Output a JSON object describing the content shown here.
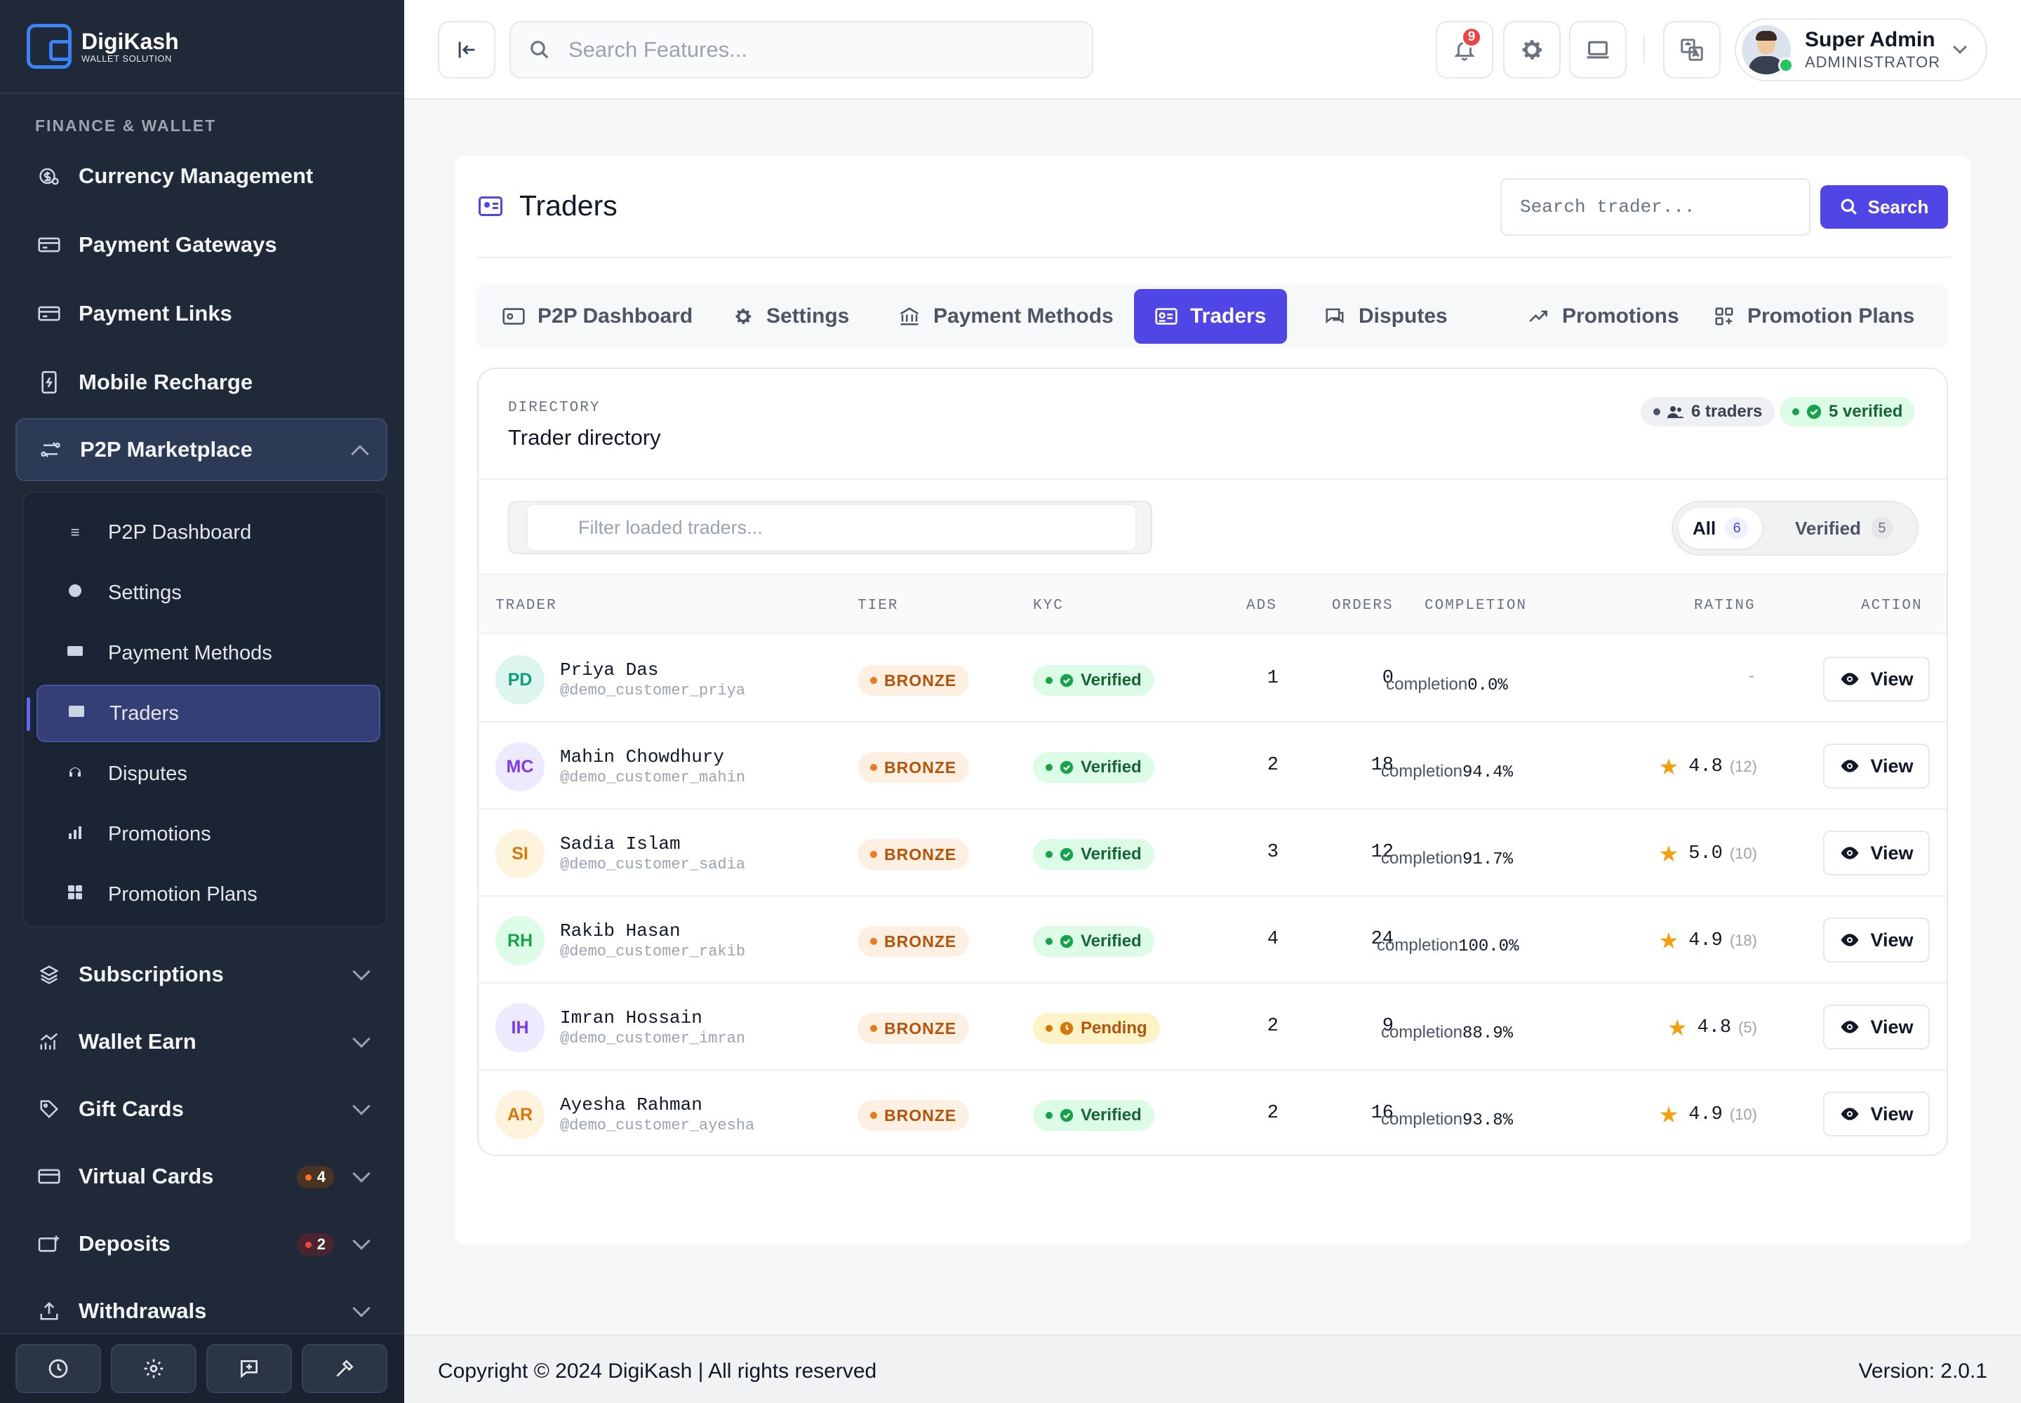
{
  "brand": {
    "name": "DigiKash",
    "tagline": "WALLET SOLUTION"
  },
  "sidebar": {
    "section_label": "FINANCE & WALLET",
    "items": [
      {
        "label": "Currency Management",
        "icon": "currency-icon"
      },
      {
        "label": "Payment Gateways",
        "icon": "card-icon"
      },
      {
        "label": "Payment Links",
        "icon": "card-icon"
      },
      {
        "label": "Mobile Recharge",
        "icon": "mobile-icon"
      },
      {
        "label": "P2P Marketplace",
        "icon": "exchange-icon",
        "expanded": true
      },
      {
        "label": "Subscriptions",
        "icon": "layers-icon"
      },
      {
        "label": "Wallet Earn",
        "icon": "chart-icon"
      },
      {
        "label": "Gift Cards",
        "icon": "tag-icon"
      },
      {
        "label": "Virtual Cards",
        "icon": "card-icon",
        "badge": "4",
        "badge_color": "#f97316"
      },
      {
        "label": "Deposits",
        "icon": "deposit-icon",
        "badge": "2",
        "badge_color": "#ef4444"
      },
      {
        "label": "Withdrawals",
        "icon": "upload-icon"
      }
    ],
    "submenu": [
      {
        "label": "P2P Dashboard",
        "icon": "list-icon"
      },
      {
        "label": "Settings",
        "icon": "gear-icon"
      },
      {
        "label": "Payment Methods",
        "icon": "card-icon"
      },
      {
        "label": "Traders",
        "icon": "id-card-icon",
        "active": true
      },
      {
        "label": "Disputes",
        "icon": "headset-icon"
      },
      {
        "label": "Promotions",
        "icon": "chart-icon"
      },
      {
        "label": "Promotion Plans",
        "icon": "grid-icon"
      }
    ]
  },
  "topbar": {
    "search_placeholder": "Search Features...",
    "notification_count": "9",
    "user": {
      "name": "Super Admin",
      "role": "ADMINISTRATOR"
    }
  },
  "page": {
    "title": "Traders",
    "search_placeholder": "Search trader...",
    "search_button": "Search",
    "tabs": [
      {
        "label": "P2P Dashboard"
      },
      {
        "label": "Settings"
      },
      {
        "label": "Payment Methods"
      },
      {
        "label": "Traders",
        "active": true
      },
      {
        "label": "Disputes"
      },
      {
        "label": "Promotions"
      },
      {
        "label": "Promotion Plans"
      }
    ]
  },
  "directory": {
    "eyebrow": "DIRECTORY",
    "title": "Trader directory",
    "traders_pill": "6 traders",
    "verified_pill": "5 verified",
    "filter_placeholder": "Filter loaded traders...",
    "segments": [
      {
        "label": "All",
        "count": "6",
        "active": true
      },
      {
        "label": "Verified",
        "count": "5"
      }
    ],
    "columns": [
      "TRADER",
      "TIER",
      "KYC",
      "ADS",
      "ORDERS",
      "COMPLETION",
      "RATING",
      "ACTION"
    ],
    "completion_prefix": "completion",
    "view_label": "View",
    "rows": [
      {
        "initials": "PD",
        "name": "Priya Das",
        "username": "@demo_customer_priya",
        "tier": "BRONZE",
        "kyc": "Verified",
        "kyc_state": "verified",
        "ads": "1",
        "orders": "0",
        "completion": "0.0%",
        "rating": "",
        "rating_count": "",
        "no_rating": "-",
        "av_bg": "#dcf5ee",
        "av_fg": "#0f9f7a"
      },
      {
        "initials": "MC",
        "name": "Mahin Chowdhury",
        "username": "@demo_customer_mahin",
        "tier": "BRONZE",
        "kyc": "Verified",
        "kyc_state": "verified",
        "ads": "2",
        "orders": "18",
        "completion": "94.4%",
        "rating": "4.8",
        "rating_count": "(12)",
        "av_bg": "#ede9fe",
        "av_fg": "#7c3aed"
      },
      {
        "initials": "SI",
        "name": "Sadia Islam",
        "username": "@demo_customer_sadia",
        "tier": "BRONZE",
        "kyc": "Verified",
        "kyc_state": "verified",
        "ads": "3",
        "orders": "12",
        "completion": "91.7%",
        "rating": "5.0",
        "rating_count": "(10)",
        "av_bg": "#fef3dc",
        "av_fg": "#d97706"
      },
      {
        "initials": "RH",
        "name": "Rakib Hasan",
        "username": "@demo_customer_rakib",
        "tier": "BRONZE",
        "kyc": "Verified",
        "kyc_state": "verified",
        "ads": "4",
        "orders": "24",
        "completion": "100.0%",
        "rating": "4.9",
        "rating_count": "(18)",
        "av_bg": "#dcfce7",
        "av_fg": "#16a34a"
      },
      {
        "initials": "IH",
        "name": "Imran Hossain",
        "username": "@demo_customer_imran",
        "tier": "BRONZE",
        "kyc": "Pending",
        "kyc_state": "pending",
        "ads": "2",
        "orders": "9",
        "completion": "88.9%",
        "rating": "4.8",
        "rating_count": "(5)",
        "av_bg": "#ede9fe",
        "av_fg": "#7c3aed"
      },
      {
        "initials": "AR",
        "name": "Ayesha Rahman",
        "username": "@demo_customer_ayesha",
        "tier": "BRONZE",
        "kyc": "Verified",
        "kyc_state": "verified",
        "ads": "2",
        "orders": "16",
        "completion": "93.8%",
        "rating": "4.9",
        "rating_count": "(10)",
        "av_bg": "#fef3dc",
        "av_fg": "#d97706"
      }
    ]
  },
  "footer": {
    "copyright": "Copyright © 2024 DigiKash | All rights reserved",
    "version": "Version: 2.0.1"
  },
  "colors": {
    "sidebar_bg": "#1f2937",
    "accent": "#4f46e5",
    "verified": "#16a34a",
    "pending": "#d97706",
    "star": "#f59e0b"
  }
}
